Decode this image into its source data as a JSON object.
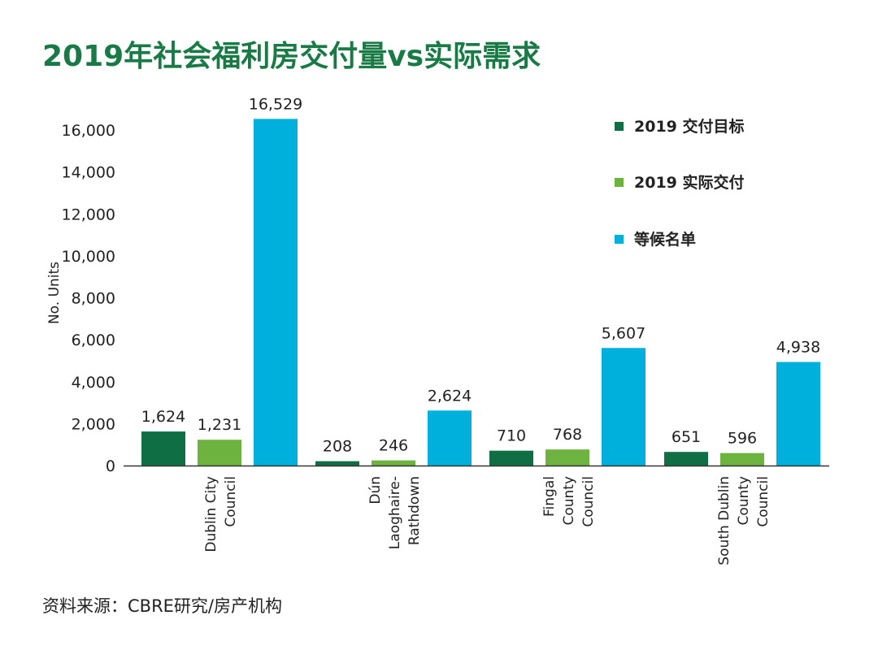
{
  "title": "2019年社会福利房交付量vs实际需求",
  "source": "资料来源：CBRE研究/房产机构",
  "colors": {
    "title": "#1a7a45",
    "target": "#0f6e43",
    "delivered": "#6db33f",
    "waitlist": "#00b0dc",
    "axis": "#333333"
  },
  "chart_data": {
    "type": "bar",
    "title": "2019年社会福利房交付量vs实际需求",
    "ylabel": "No. Units",
    "xlabel": "",
    "ylim": [
      0,
      16000
    ],
    "yticks": [
      0,
      2000,
      4000,
      6000,
      8000,
      10000,
      12000,
      14000,
      16000
    ],
    "ytick_labels": [
      "0",
      "2,000",
      "4,000",
      "6,000",
      "8,000",
      "10,000",
      "12,000",
      "14,000",
      "16,000"
    ],
    "grid": false,
    "legend_position": "top-right",
    "categories": [
      [
        "Dublin City",
        "Council"
      ],
      [
        "Dún",
        "Laoghaire-",
        "Rathdown"
      ],
      [
        "Fingal",
        "County",
        "Council"
      ],
      [
        "South Dublin",
        "County",
        "Council"
      ]
    ],
    "series": [
      {
        "name": "2019 交付目标",
        "color": "#0f6e43",
        "values": [
          1624,
          208,
          710,
          651
        ],
        "labels": [
          "1,624",
          "208",
          "710",
          "651"
        ]
      },
      {
        "name": "2019 实际交付",
        "color": "#6db33f",
        "values": [
          1231,
          246,
          768,
          596
        ],
        "labels": [
          "1,231",
          "246",
          "768",
          "596"
        ]
      },
      {
        "name": "等候名单",
        "color": "#00b0dc",
        "values": [
          16529,
          2624,
          5607,
          4938
        ],
        "labels": [
          "16,529",
          "2,624",
          "5,607",
          "4,938"
        ]
      }
    ]
  }
}
